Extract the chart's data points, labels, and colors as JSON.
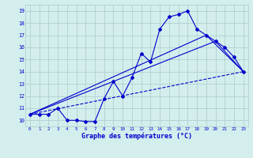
{
  "title": "Graphe des températures (°C)",
  "background_color": "#d4eeed",
  "grid_color": "#b0cfcf",
  "line_color": "#0000cc",
  "xlim": [
    -0.5,
    23.5
  ],
  "ylim": [
    9.5,
    19.5
  ],
  "xticks": [
    0,
    1,
    2,
    3,
    4,
    5,
    6,
    7,
    8,
    9,
    10,
    11,
    12,
    13,
    14,
    15,
    16,
    17,
    18,
    19,
    20,
    21,
    22,
    23
  ],
  "yticks": [
    10,
    11,
    12,
    13,
    14,
    15,
    16,
    17,
    18,
    19
  ],
  "line_main": {
    "x": [
      0,
      1,
      2,
      3,
      4,
      5,
      6,
      7,
      8,
      9,
      10,
      11,
      12,
      13,
      14,
      15,
      16,
      17,
      18,
      19,
      20,
      21,
      22,
      23
    ],
    "y": [
      10.5,
      10.5,
      10.5,
      11.0,
      10.0,
      10.0,
      9.9,
      9.9,
      11.8,
      13.2,
      12.0,
      13.5,
      15.5,
      14.8,
      17.5,
      18.5,
      18.7,
      19.0,
      17.5,
      17.0,
      16.5,
      16.0,
      15.2,
      14.0
    ]
  },
  "line_diag": {
    "x": [
      0,
      23
    ],
    "y": [
      10.5,
      14.0
    ]
  },
  "line_tri1": {
    "x": [
      0,
      20,
      23
    ],
    "y": [
      10.5,
      16.5,
      14.0
    ]
  },
  "line_tri2": {
    "x": [
      0,
      19,
      23
    ],
    "y": [
      10.5,
      17.0,
      14.0
    ]
  }
}
